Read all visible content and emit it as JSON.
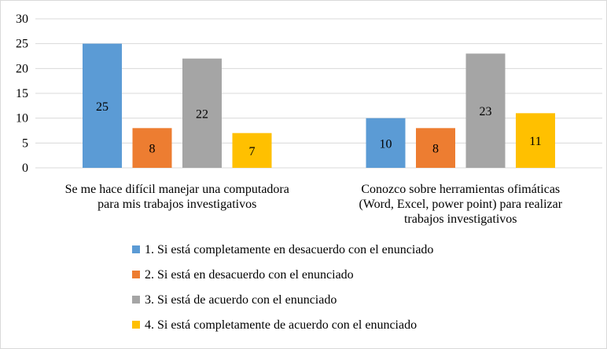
{
  "chart_data": {
    "type": "bar",
    "title": "",
    "xlabel": "",
    "ylabel": "",
    "ylim": [
      0,
      30
    ],
    "yticks": [
      "0",
      "5",
      "10",
      "15",
      "20",
      "25",
      "30"
    ],
    "grid": true,
    "legend_position": "bottom",
    "categories": [
      [
        "Se me hace difícil manejar una computadora",
        "para mis trabajos investigativos"
      ],
      [
        "Conozco sobre herramientas ofimáticas",
        "(Word, Excel, power point) para realizar",
        "trabajos investigativos"
      ]
    ],
    "series": [
      {
        "name": "1. Si está completamente en desacuerdo con el enunciado",
        "color": "#5B9BD5",
        "values": [
          25,
          10
        ]
      },
      {
        "name": "2. Si está en desacuerdo con el enunciado",
        "color": "#ED7D31",
        "values": [
          8,
          8
        ]
      },
      {
        "name": "3. Si está de acuerdo con el enunciado",
        "color": "#A5A5A5",
        "values": [
          22,
          23
        ]
      },
      {
        "name": "4. Si está completamente de acuerdo con el enunciado",
        "color": "#FFC000",
        "values": [
          7,
          11
        ]
      }
    ]
  }
}
